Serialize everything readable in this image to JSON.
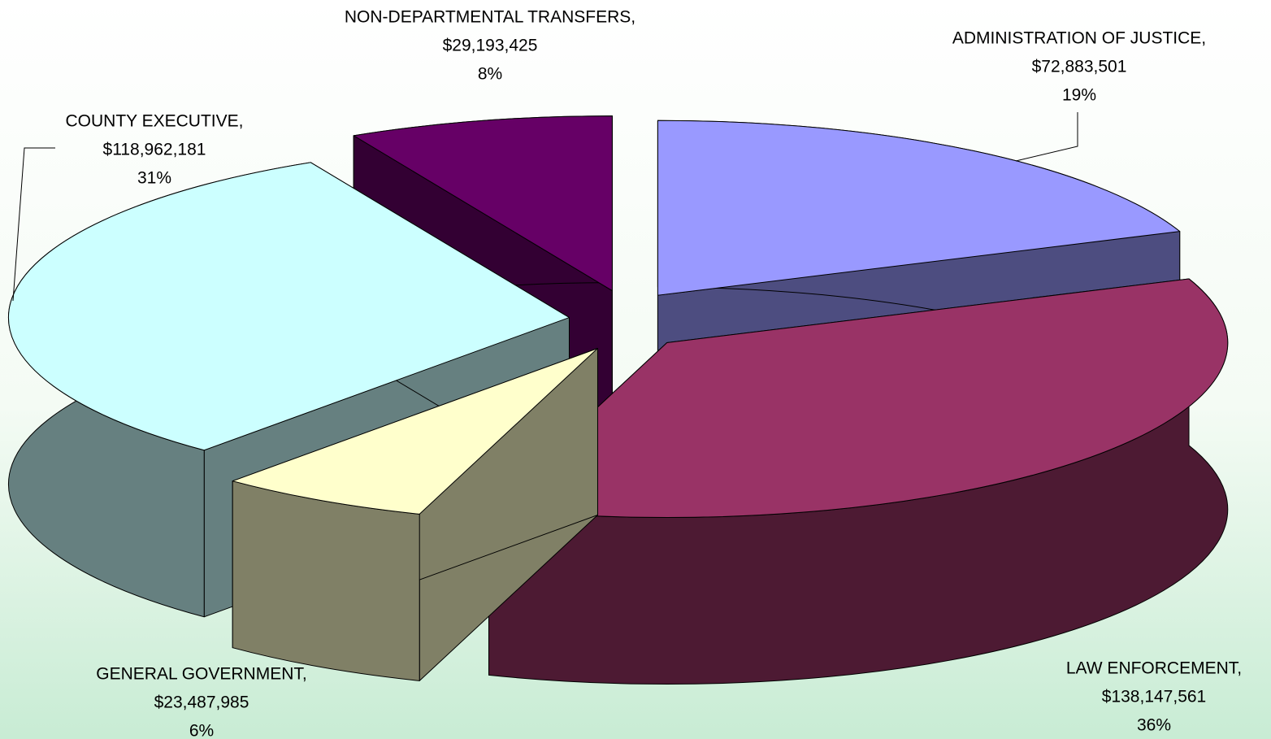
{
  "chart_data": {
    "type": "pie",
    "categories": [
      "ADMINISTRATION OF JUSTICE,",
      "LAW ENFORCEMENT,",
      "GENERAL GOVERNMENT,",
      "COUNTY EXECUTIVE,",
      "NON-DEPARTMENTAL TRANSFERS,"
    ],
    "values": [
      72883501,
      138147561,
      23487985,
      118962181,
      29193425
    ],
    "value_labels": [
      "$72,883,501",
      "$138,147,561",
      "$23,487,985",
      "$118,962,181",
      "$29,193,425"
    ],
    "percent_labels": [
      "19%",
      "36%",
      "6%",
      "31%",
      "8%"
    ],
    "colors": [
      "#9999ff",
      "#993366",
      "#ffffcc",
      "#ccffff",
      "#660066"
    ],
    "three_d": true,
    "exploded": true
  }
}
